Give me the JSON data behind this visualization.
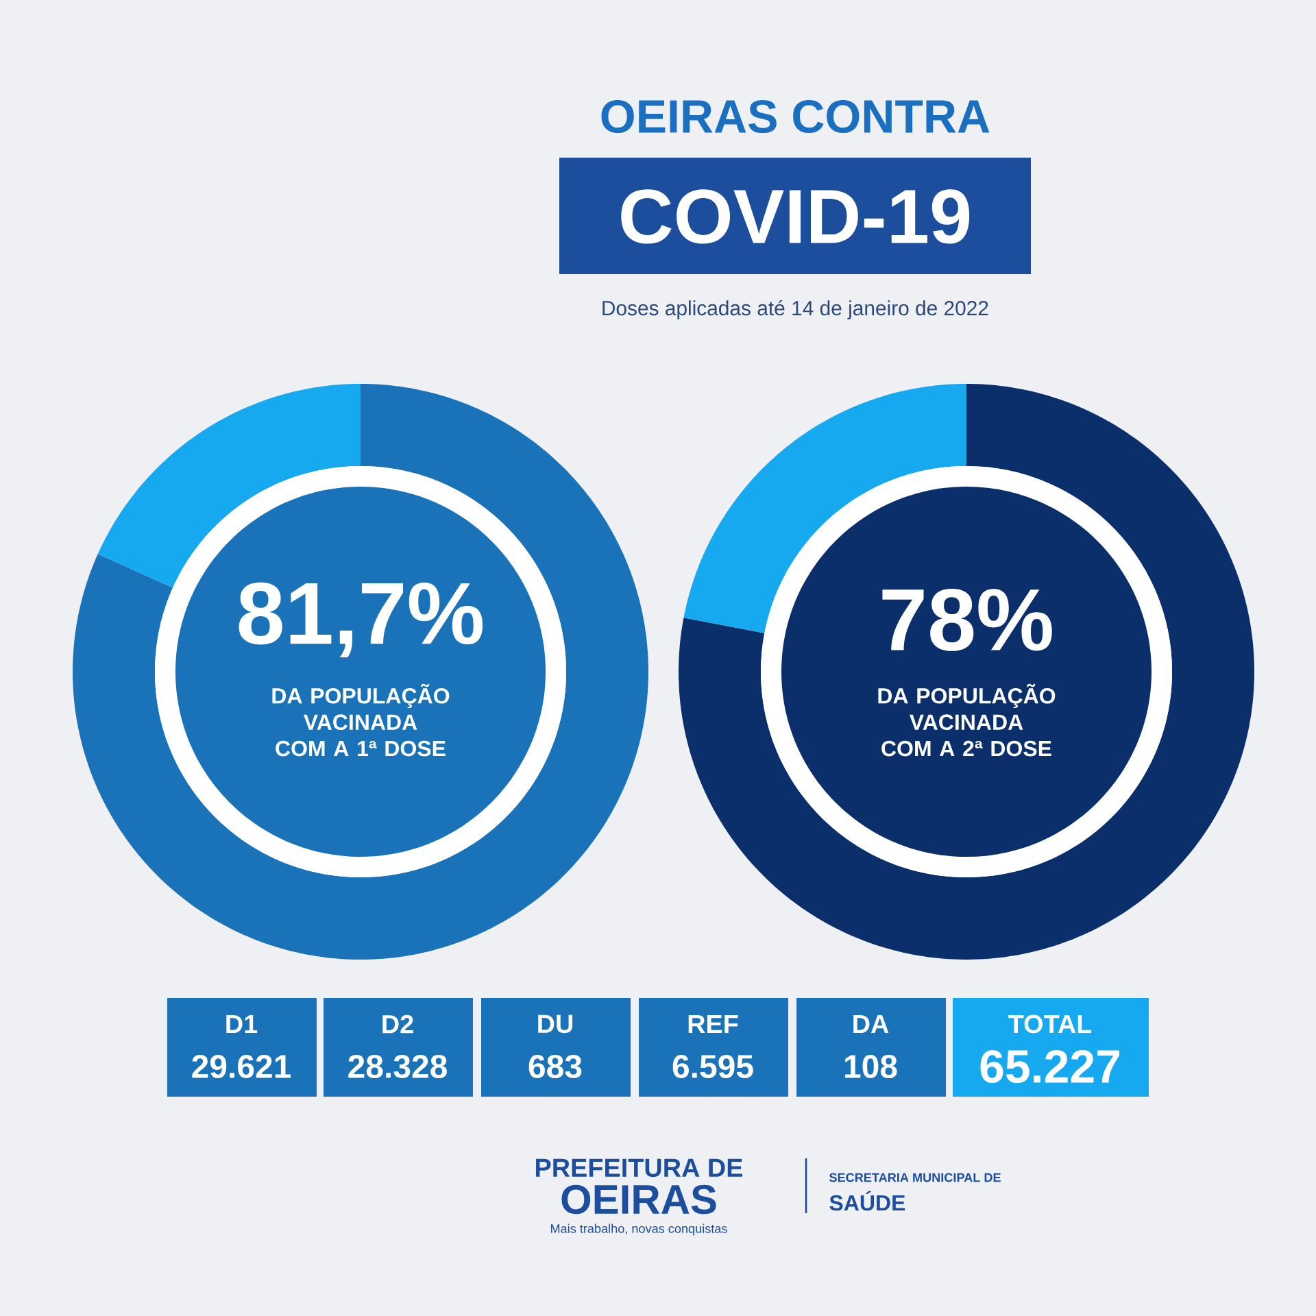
{
  "chart_data": [
    {
      "type": "other",
      "title": "OEIRAS CONTRA",
      "subtitle": "COVID-19",
      "annotations": [
        "Doses aplicadas até 14 de janeiro de 2022",
        "PREFEITURA DE",
        "OEIRAS",
        "Mais trabalho, novas conquistas",
        "SECRETARIA MUNICIPAL DE",
        "SAÚDE"
      ]
    },
    {
      "type": "donut",
      "categories": [
        null,
        null
      ],
      "values": [
        81.7,
        18.3
      ],
      "colors": [
        "#1a73b8",
        "#16a9f0"
      ],
      "value_labels": [
        "81,7%",
        null
      ],
      "annotations": [
        "DA POPULAÇÃO VACINADA COM A 1ª DOSE"
      ]
    },
    {
      "type": "donut",
      "categories": [
        null,
        null
      ],
      "values": [
        78,
        22
      ],
      "colors": [
        "#0b2f6b",
        "#16a9f0"
      ],
      "value_labels": [
        "78%",
        null
      ],
      "annotations": [
        "DA POPULAÇÃO VACINADA COM A 2ª DOSE"
      ]
    },
    {
      "type": "other",
      "categories": [
        "D1",
        "D2",
        "DU",
        "REF",
        "DA",
        "TOTAL"
      ],
      "value_labels": [
        "29.621",
        "28.328",
        "683",
        "6.595",
        "108",
        "65.227"
      ],
      "colors": [
        "#1a73b8",
        "#1a73b8",
        "#1a73b8",
        "#1a73b8",
        "#1a73b8",
        "#16a9f0"
      ]
    }
  ]
}
